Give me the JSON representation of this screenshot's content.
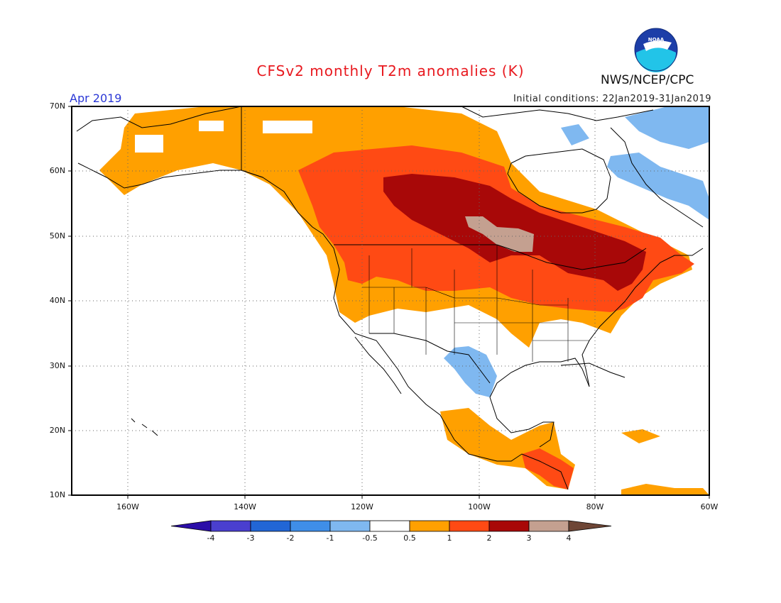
{
  "title": "CFSv2 monthly T2m anomalies (K)",
  "organization": "NWS/NCEP/CPC",
  "logo_text": "NOAA",
  "month": "Apr 2019",
  "initial_conditions": "Initial conditions: 22Jan2019-31Jan2019",
  "lat_labels": [
    "70N",
    "60N",
    "50N",
    "40N",
    "30N",
    "20N",
    "10N"
  ],
  "lon_labels": [
    "160W",
    "140W",
    "120W",
    "100W",
    "80W",
    "60W"
  ],
  "colorbar": {
    "labels": [
      "-4",
      "-3",
      "-2",
      "-1",
      "-0.5",
      "0.5",
      "1",
      "2",
      "3",
      "4"
    ],
    "colors": [
      "#2b0ea8",
      "#4a3fcf",
      "#2266d6",
      "#3f8ee8",
      "#7fb8f0",
      "#ffffff",
      "#ffa000",
      "#ff4a14",
      "#a80808",
      "#c4a090",
      "#6e4636"
    ]
  }
}
